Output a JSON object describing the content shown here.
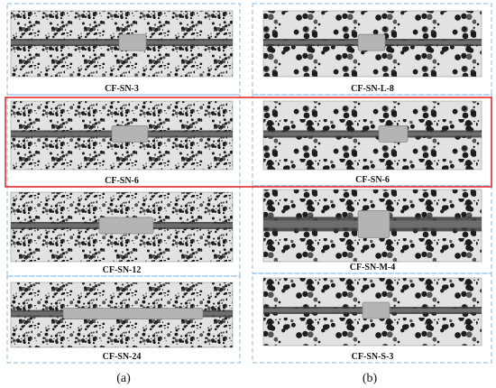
{
  "panels": [
    {
      "caption": "(a)",
      "images": [
        "CF-SN-3",
        "CF-SN-6",
        "CF-SN-12",
        "CF-SN-24"
      ]
    },
    {
      "caption": "(b)",
      "images": [
        "CF-SN-L-8",
        "CF-SN-6",
        "CF-SN-M-4",
        "CF-SN-S-3"
      ]
    }
  ]
}
